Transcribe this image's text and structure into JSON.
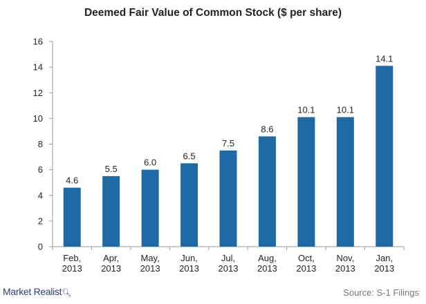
{
  "chart_data": {
    "type": "bar",
    "title": "Deemed Fair Value of Common Stock ($ per share)",
    "categories": [
      [
        "Feb,",
        "2013"
      ],
      [
        "Apr,",
        "2013"
      ],
      [
        "May,",
        "2013"
      ],
      [
        "Jun,",
        "2013"
      ],
      [
        "Jul,",
        "2013"
      ],
      [
        "Aug,",
        "2013"
      ],
      [
        "Oct,",
        "2013"
      ],
      [
        "Nov,",
        "2013"
      ],
      [
        "Jan,",
        "2013"
      ]
    ],
    "values": [
      4.6,
      5.5,
      6.0,
      6.5,
      7.5,
      8.6,
      10.1,
      10.1,
      14.1
    ],
    "data_labels": [
      "4.6",
      "5.5",
      "6.0",
      "6.5",
      "7.5",
      "8.6",
      "10.1",
      "10.1",
      "14.1"
    ],
    "ylim": [
      0,
      16
    ],
    "yticks": [
      0,
      2,
      4,
      6,
      8,
      10,
      12,
      14,
      16
    ],
    "xlabel": "",
    "ylabel": "",
    "grid": false,
    "bar_color": "#1f6aa5"
  },
  "footer": {
    "brand": "Market Realist",
    "brand_icon": "magnifier-q-icon",
    "source": "Source: S-1 Filings"
  }
}
